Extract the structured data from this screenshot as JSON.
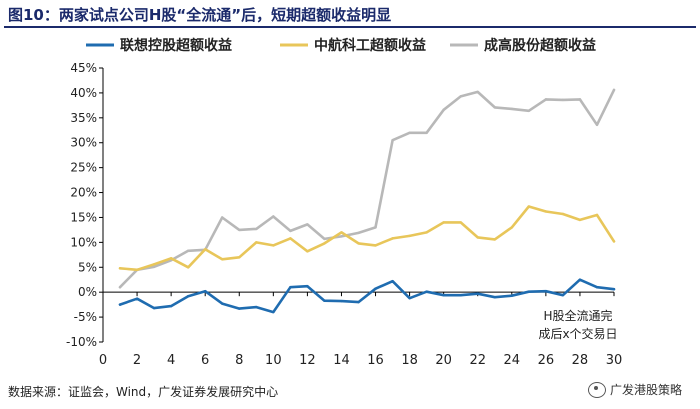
{
  "title": "图10：两家试点公司H股“全流通”后，短期超额收益明显",
  "source": "数据来源：证监会，Wind，广发证券发展研究中心",
  "watermark": {
    "text": "广发港股策略",
    "icon": "wechat-icon"
  },
  "chart_data": {
    "type": "line",
    "ylim": [
      -10,
      45
    ],
    "y_ticks": [
      "-10%",
      "-5%",
      "0%",
      "5%",
      "10%",
      "15%",
      "20%",
      "25%",
      "30%",
      "35%",
      "40%",
      "45%"
    ],
    "y_tick_values": [
      -10,
      -5,
      0,
      5,
      10,
      15,
      20,
      25,
      30,
      35,
      40,
      45
    ],
    "xlim": [
      0,
      30
    ],
    "x_ticks": [
      "0",
      "2",
      "4",
      "6",
      "8",
      "10",
      "12",
      "14",
      "16",
      "18",
      "20",
      "22",
      "24",
      "26",
      "28",
      "30"
    ],
    "x_tick_values": [
      0,
      2,
      4,
      6,
      8,
      10,
      12,
      14,
      16,
      18,
      20,
      22,
      24,
      26,
      28,
      30
    ],
    "grid": false,
    "legend_position": "top",
    "annotation": [
      "H股全流通完",
      "成后x个交易日"
    ],
    "x": [
      1,
      2,
      3,
      4,
      5,
      6,
      7,
      8,
      9,
      10,
      11,
      12,
      13,
      14,
      15,
      16,
      17,
      18,
      19,
      20,
      21,
      22,
      23,
      24,
      25,
      26,
      27,
      28,
      29,
      30
    ],
    "series": [
      {
        "name": "联想控股超额收益",
        "color": "#1f6cb0",
        "values": [
          -2.5,
          -1.3,
          -3.2,
          -2.8,
          -0.8,
          0.2,
          -2.3,
          -3.3,
          -3.0,
          -4.0,
          1.0,
          1.2,
          -1.7,
          -1.8,
          -2.0,
          0.7,
          2.2,
          -1.2,
          0.1,
          -0.6,
          -0.6,
          -0.3,
          -1.0,
          -0.7,
          0.1,
          0.2,
          -0.6,
          2.5,
          1.0,
          0.6
        ]
      },
      {
        "name": "中航科工超额收益",
        "color": "#e8c65a",
        "values": [
          4.8,
          4.5,
          5.6,
          6.8,
          5.0,
          8.6,
          6.6,
          7.0,
          10.0,
          9.4,
          10.8,
          8.2,
          9.8,
          12.0,
          9.8,
          9.4,
          10.8,
          11.3,
          12.0,
          14.0,
          14.0,
          11.0,
          10.6,
          13.0,
          17.2,
          16.2,
          15.7,
          14.5,
          15.5,
          10.2
        ]
      },
      {
        "name": "成高股份超额收益",
        "color": "#b8b8b8",
        "values": [
          1.0,
          4.5,
          5.1,
          6.4,
          8.3,
          8.5,
          15.0,
          12.5,
          12.7,
          15.2,
          12.3,
          13.6,
          10.7,
          11.2,
          11.9,
          13.0,
          30.5,
          32.0,
          32.0,
          36.6,
          39.3,
          40.2,
          37.1,
          36.8,
          36.4,
          38.7,
          38.6,
          38.7,
          33.6,
          40.6
        ]
      }
    ]
  }
}
